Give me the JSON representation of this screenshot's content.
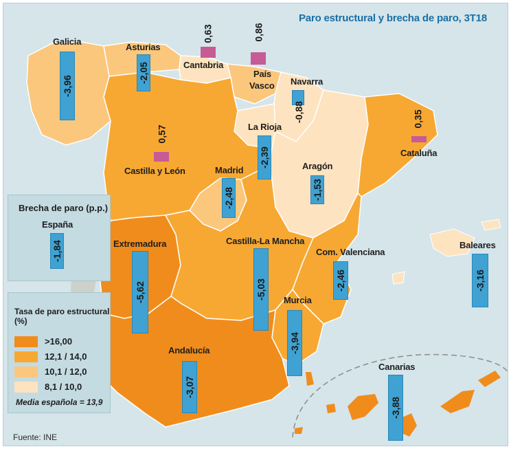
{
  "title": "Paro estructural y brecha de paro, 3T18",
  "source": "Fuente: INE",
  "panel": {
    "title": "Brecha de paro (p.p.)",
    "region": "España",
    "value": "-1,84"
  },
  "legend": {
    "title_line1": "Tasa de paro estructural",
    "title_line2": "(%)",
    "items": [
      {
        "label": ">16,00",
        "color": "#f08c1c"
      },
      {
        "label": "12,1 / 14,0",
        "color": "#f7a833"
      },
      {
        "label": "10,1 / 12,0",
        "color": "#fbc77d"
      },
      {
        "label": "8,1 / 10,0",
        "color": "#fde3bf"
      }
    ],
    "mean": "Media española = 13,9"
  },
  "colors": {
    "sea": "#d5e5ea",
    "bar_negative": "#3fa2d2",
    "bar_positive": "#c75b96",
    "title": "#1a6fa6"
  },
  "regions": {
    "galicia": {
      "name": "Galicia",
      "value": "-3,96",
      "class": "10,1 / 12,0"
    },
    "asturias": {
      "name": "Asturias",
      "value": "-2,05",
      "class": "10,1 / 12,0"
    },
    "cantabria": {
      "name": "Cantabria",
      "value": "0,63",
      "class": "8,1 / 10,0"
    },
    "pais_vasco": {
      "name_line1": "País",
      "name_line2": "Vasco",
      "value": "0,86",
      "class": "10,1 / 12,0"
    },
    "navarra": {
      "name": "Navarra",
      "value": "-0,88",
      "class": "8,1 / 10,0"
    },
    "la_rioja": {
      "name": "La Rioja",
      "value": "-2,39",
      "class": "8,1 / 10,0"
    },
    "cataluna": {
      "name": "Cataluña",
      "value": "0,35",
      "class": "12,1 / 14,0"
    },
    "castilla_leon": {
      "name": "Castilla y León",
      "value": "0,57",
      "class": "12,1 / 14,0"
    },
    "aragon": {
      "name": "Aragón",
      "value": "-1,53",
      "class": "8,1 / 10,0"
    },
    "madrid": {
      "name": "Madrid",
      "value": "-2,48",
      "class": "10,1 / 12,0"
    },
    "extremadura": {
      "name": "Extremadura",
      "value": "-5,62",
      "class": ">16,00"
    },
    "castilla_mancha": {
      "name": "Castilla-La Mancha",
      "value": "-5,03",
      "class": "12,1 / 14,0"
    },
    "valenciana": {
      "name": "Com. Valenciana",
      "value": "-2,46",
      "class": "12,1 / 14,0"
    },
    "baleares": {
      "name": "Baleares",
      "value": "-3,16",
      "class": "8,1 / 10,0"
    },
    "murcia": {
      "name": "Murcia",
      "value": "-3,94",
      "class": "12,1 / 14,0"
    },
    "andalucia": {
      "name": "Andalucía",
      "value": "-3,07",
      "class": ">16,00"
    },
    "canarias": {
      "name": "Canarias",
      "value": "-3,88",
      "class": ">16,00"
    }
  }
}
